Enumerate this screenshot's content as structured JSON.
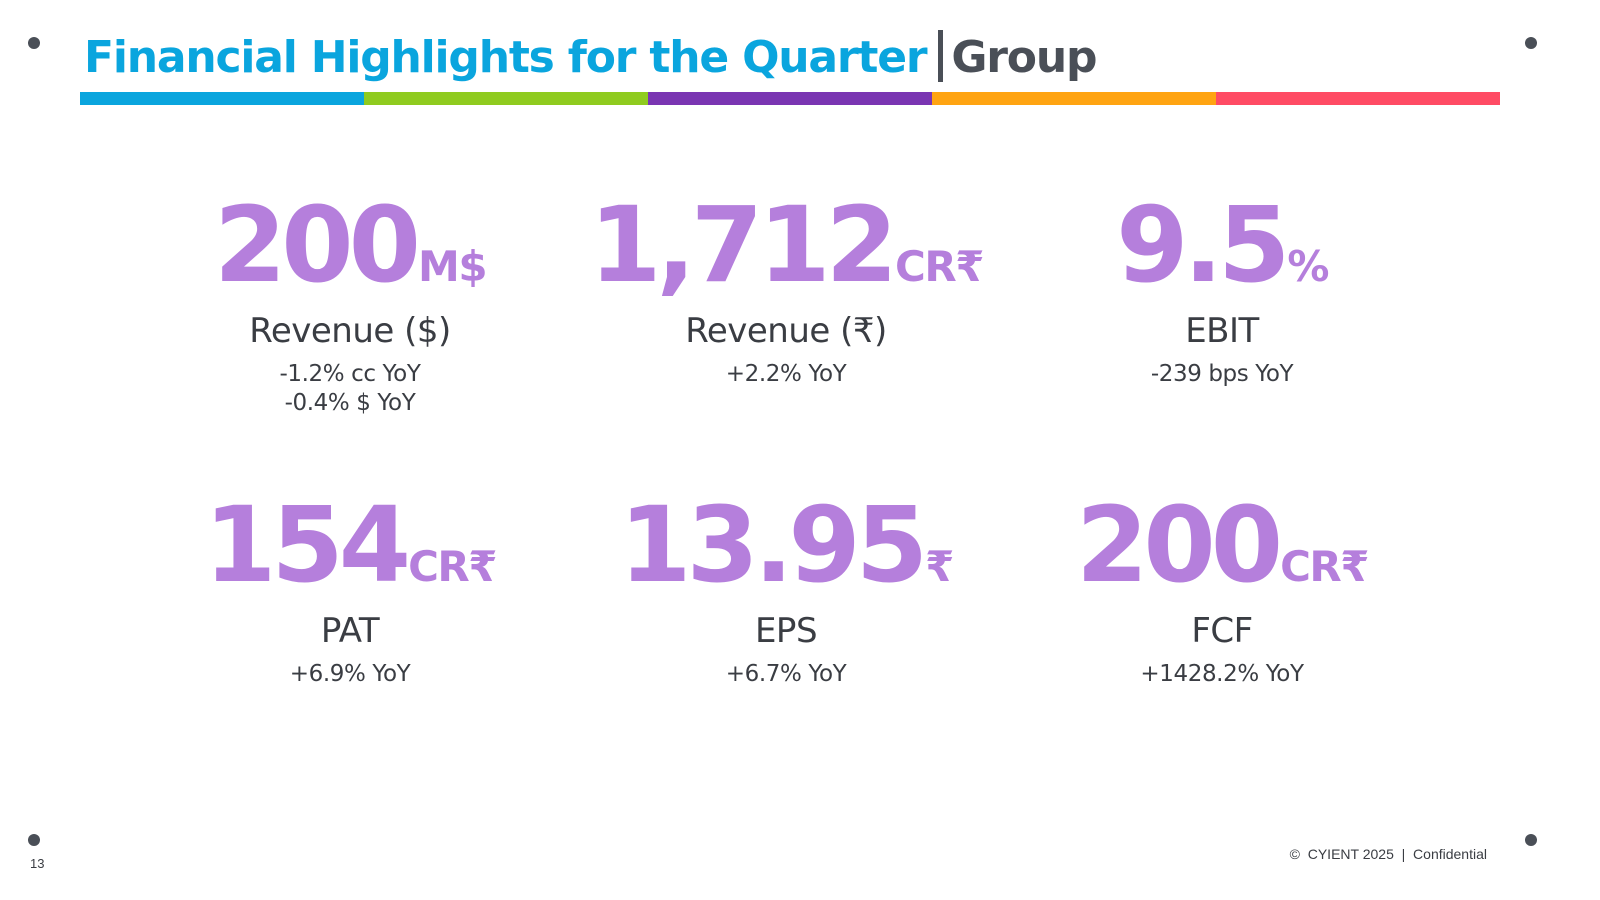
{
  "header": {
    "title": "Financial Highlights for the Quarter",
    "subtitle": "Group"
  },
  "colors": {
    "title": "#0aa5de",
    "subtitle": "#4a4f57",
    "metric_value": "#b57fdc",
    "bar_segments": [
      "#0aa5de",
      "#8fcb1f",
      "#7a35b2",
      "#ffa412",
      "#ff4b64"
    ]
  },
  "metrics": [
    {
      "value": "200",
      "unit": "M$",
      "label": "Revenue ($)",
      "change_1": "-1.2% cc YoY",
      "change_2": "-0.4% $ YoY"
    },
    {
      "value": "1,712",
      "unit": "CR₹",
      "label": "Revenue (₹)",
      "change_1": "+2.2% YoY"
    },
    {
      "value": "9.5",
      "unit": "%",
      "label": "EBIT",
      "change_1": "-239 bps YoY"
    },
    {
      "value": "154",
      "unit": "CR₹",
      "label": "PAT",
      "change_1": "+6.9% YoY"
    },
    {
      "value": "13.95",
      "unit": "₹",
      "label": "EPS",
      "change_1": "+6.7% YoY"
    },
    {
      "value": "200",
      "unit": "CR₹",
      "label": "FCF",
      "change_1": "+1428.2% YoY"
    }
  ],
  "footer": {
    "page_number": "13",
    "copyright": "©  CYIENT 2025  |  Confidential"
  }
}
